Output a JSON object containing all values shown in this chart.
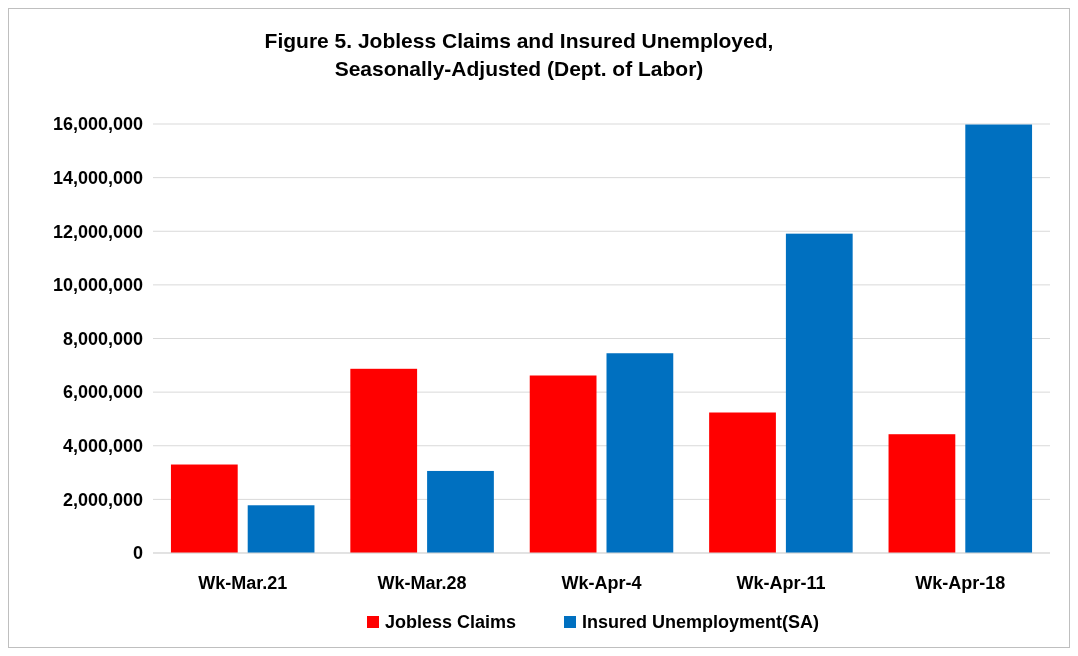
{
  "chart_data": {
    "type": "bar",
    "title": "Figure 5. Jobless Claims and Insured Unemployed, Seasonally-Adjusted (Dept. of Labor)",
    "categories": [
      "Wk-Mar.21",
      "Wk-Mar.28",
      "Wk-Apr-4",
      "Wk-Apr-11",
      "Wk-Apr-18"
    ],
    "series": [
      {
        "name": "Jobless Claims",
        "color": "#ff0000",
        "values": [
          3300000,
          6870000,
          6620000,
          5240000,
          4430000
        ]
      },
      {
        "name": "Insured Unemployment(SA)",
        "color": "#0070c0",
        "values": [
          1780000,
          3060000,
          7450000,
          11910000,
          15980000
        ]
      }
    ],
    "ylim": [
      0,
      16000000
    ],
    "yticks": [
      {
        "value": 0,
        "label": "0"
      },
      {
        "value": 2000000,
        "label": "2,000,000"
      },
      {
        "value": 4000000,
        "label": "4,000,000"
      },
      {
        "value": 6000000,
        "label": "6,000,000"
      },
      {
        "value": 8000000,
        "label": "8,000,000"
      },
      {
        "value": 10000000,
        "label": "10,000,000"
      },
      {
        "value": 12000000,
        "label": "12,000,000"
      },
      {
        "value": 14000000,
        "label": "14,000,000"
      },
      {
        "value": 16000000,
        "label": "16,000,000"
      }
    ],
    "grid": "y",
    "legend": "bottom"
  }
}
